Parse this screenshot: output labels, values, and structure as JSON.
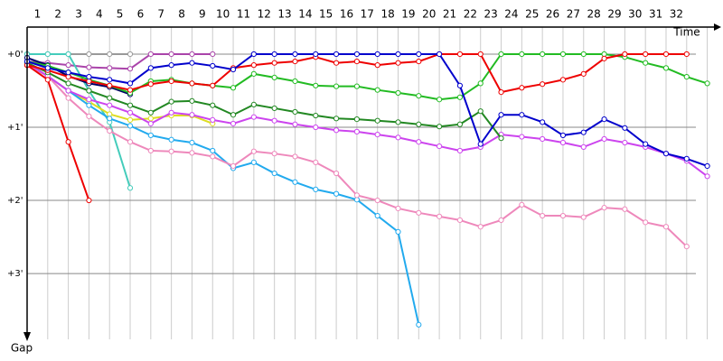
{
  "chart_data": {
    "type": "line",
    "x_label": "Time",
    "y_label": "Gap",
    "x": [
      0,
      1,
      2,
      3,
      4,
      5,
      6,
      7,
      8,
      9,
      10,
      11,
      12,
      13,
      14,
      15,
      16,
      17,
      18,
      19,
      20,
      21,
      22,
      23,
      24,
      25,
      26,
      27,
      28,
      29,
      30,
      31,
      32,
      33
    ],
    "xlim": [
      0,
      33.5
    ],
    "xticks": [
      1,
      2,
      3,
      4,
      5,
      6,
      7,
      8,
      9,
      10,
      11,
      12,
      13,
      14,
      15,
      16,
      17,
      18,
      19,
      20,
      21,
      22,
      23,
      24,
      25,
      26,
      27,
      28,
      29,
      30,
      31,
      32
    ],
    "ylim": [
      -0.37,
      3.9
    ],
    "yticks": [
      {
        "value": 0,
        "label": "+0'"
      },
      {
        "value": 1,
        "label": "+1'"
      },
      {
        "value": 2,
        "label": "+2'"
      },
      {
        "value": 3,
        "label": "+3'"
      }
    ],
    "grid": true,
    "series": [
      {
        "color": "#999999",
        "values": [
          0,
          0,
          0,
          0,
          0,
          0,
          null,
          null,
          null,
          null,
          null,
          null,
          null,
          null,
          null,
          null,
          null,
          null,
          null,
          null,
          null,
          null,
          null,
          null,
          null,
          null,
          null,
          null,
          null,
          null,
          null,
          null,
          null,
          null
        ]
      },
      {
        "color": "#aa44aa",
        "values": [
          0.1,
          0.12,
          0.15,
          0.18,
          0.19,
          0.2,
          0,
          0,
          0,
          0,
          null,
          null,
          null,
          null,
          null,
          null,
          null,
          null,
          null,
          null,
          null,
          null,
          null,
          null,
          null,
          null,
          null,
          null,
          null,
          null,
          null,
          null,
          null,
          null
        ]
      },
      {
        "color": "#44ccbb",
        "values": [
          0,
          0,
          0,
          0.5,
          0.93,
          1.83,
          null,
          null,
          null,
          null,
          null,
          null,
          null,
          null,
          null,
          null,
          null,
          null,
          null,
          null,
          null,
          null,
          null,
          null,
          null,
          null,
          null,
          null,
          null,
          null,
          null,
          null,
          null,
          null
        ]
      },
      {
        "color": "#000066",
        "values": [
          0.05,
          0.15,
          0.3,
          0.4,
          0.45,
          0.55,
          null,
          null,
          null,
          null,
          null,
          null,
          null,
          null,
          null,
          null,
          null,
          null,
          null,
          null,
          null,
          null,
          null,
          null,
          null,
          null,
          null,
          null,
          null,
          null,
          null,
          null,
          null,
          null
        ]
      },
      {
        "color": "#dddd22",
        "values": [
          0.15,
          0.3,
          0.5,
          0.65,
          0.82,
          0.9,
          0.88,
          0.84,
          0.84,
          0.95,
          null,
          null,
          null,
          null,
          null,
          null,
          null,
          null,
          null,
          null,
          null,
          null,
          null,
          null,
          null,
          null,
          null,
          null,
          null,
          null,
          null,
          null,
          null,
          null
        ]
      },
      {
        "color": "#22aaee",
        "values": [
          0.15,
          0.3,
          0.5,
          0.7,
          0.88,
          0.98,
          1.11,
          1.17,
          1.21,
          1.32,
          1.56,
          1.48,
          1.63,
          1.75,
          1.85,
          1.91,
          1.99,
          2.21,
          2.43,
          3.7,
          null,
          null,
          null,
          null,
          null,
          null,
          null,
          null,
          null,
          null,
          null,
          null,
          null,
          null
        ]
      },
      {
        "color": "#ee88bb",
        "values": [
          0.15,
          0.3,
          0.6,
          0.85,
          1.05,
          1.2,
          1.32,
          1.33,
          1.35,
          1.4,
          1.53,
          1.33,
          1.36,
          1.4,
          1.48,
          1.63,
          1.93,
          2.0,
          2.11,
          2.17,
          2.22,
          2.27,
          2.36,
          2.27,
          2.06,
          2.21,
          2.21,
          2.23,
          2.1,
          2.12,
          2.3,
          2.36,
          2.63,
          null
        ]
      },
      {
        "color": "#cc44ee",
        "values": [
          0.12,
          0.3,
          0.5,
          0.62,
          0.7,
          0.8,
          0.95,
          0.8,
          0.83,
          0.9,
          0.95,
          0.86,
          0.91,
          0.96,
          1.0,
          1.04,
          1.06,
          1.1,
          1.14,
          1.2,
          1.26,
          1.32,
          1.27,
          1.1,
          1.13,
          1.16,
          1.21,
          1.27,
          1.16,
          1.21,
          1.27,
          1.36,
          1.46,
          1.67
        ]
      },
      {
        "color": "#228822",
        "values": [
          0.12,
          0.25,
          0.4,
          0.5,
          0.6,
          0.7,
          0.8,
          0.65,
          0.64,
          0.7,
          0.83,
          0.69,
          0.74,
          0.79,
          0.84,
          0.88,
          0.89,
          0.91,
          0.93,
          0.96,
          0.99,
          0.96,
          0.78,
          1.15,
          null,
          null,
          null,
          null,
          null,
          null,
          null,
          null,
          null,
          null
        ]
      },
      {
        "color": "#22bb22",
        "values": [
          0.1,
          0.16,
          0.25,
          0.35,
          0.43,
          0.53,
          0.37,
          0.35,
          0.4,
          0.43,
          0.46,
          0.27,
          0.32,
          0.37,
          0.43,
          0.44,
          0.44,
          0.49,
          0.53,
          0.57,
          0.62,
          0.59,
          0.4,
          0,
          0,
          0,
          0,
          0,
          0,
          0.04,
          0.12,
          0.19,
          0.31,
          0.4
        ]
      },
      {
        "color": "#ee0000",
        "values": [
          0.15,
          0.35,
          1.2,
          2.0,
          null,
          null,
          null,
          null,
          null,
          null,
          null,
          null,
          null,
          null,
          null,
          null,
          null,
          null,
          null,
          null,
          null,
          null,
          null,
          null,
          null,
          null,
          null,
          null,
          null,
          null,
          null,
          null,
          null,
          null
        ]
      },
      {
        "color": "#ee0000",
        "values": [
          0.15,
          0.22,
          0.31,
          0.37,
          0.43,
          0.49,
          0.41,
          0.37,
          0.4,
          0.43,
          0.19,
          0.15,
          0.12,
          0.1,
          0.04,
          0.12,
          0.1,
          0.15,
          0.12,
          0.1,
          0,
          0,
          0,
          0.52,
          0.46,
          0.41,
          0.35,
          0.27,
          0.06,
          0,
          0,
          0,
          0,
          null
        ]
      },
      {
        "color": "#0000cc",
        "values": [
          0.1,
          0.19,
          0.25,
          0.31,
          0.35,
          0.4,
          0.19,
          0.15,
          0.12,
          0.16,
          0.21,
          0,
          0,
          0,
          0,
          0,
          0,
          0,
          0,
          0,
          0,
          0.43,
          1.23,
          0.83,
          0.83,
          0.93,
          1.11,
          1.07,
          0.89,
          1.01,
          1.23,
          1.36,
          1.43,
          1.53
        ]
      }
    ]
  }
}
